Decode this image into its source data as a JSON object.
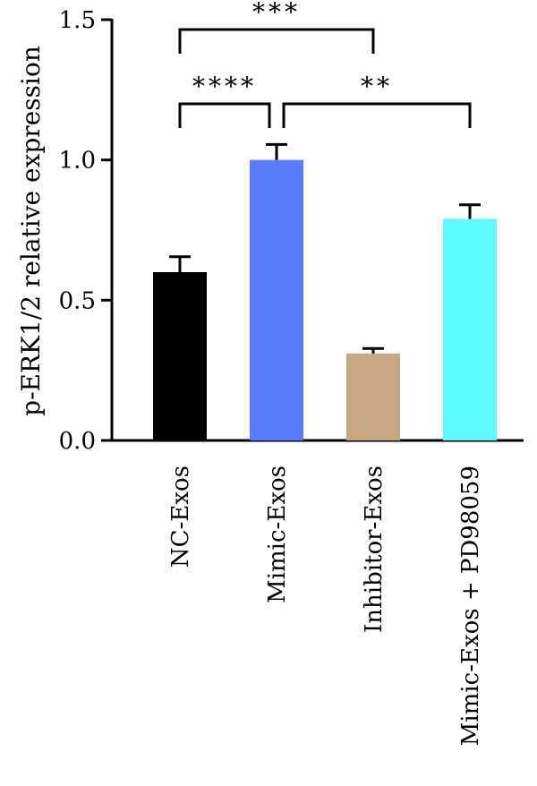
{
  "chart_data": {
    "type": "bar",
    "title": "",
    "xlabel": "",
    "ylabel": "p-ERK1/2 relative expression",
    "ylim": [
      0,
      1.5
    ],
    "yticks": [
      "0.0",
      "0.5",
      "1.0",
      "1.5"
    ],
    "ytick_values": [
      0,
      0.5,
      1.0,
      1.5
    ],
    "categories": [
      "NC-Exos",
      "Mimic-Exos",
      "Inhibitor-Exos",
      "Mimic-Exos + PD98059"
    ],
    "values": [
      0.6,
      1.0,
      0.31,
      0.79
    ],
    "errors": [
      0.055,
      0.055,
      0.018,
      0.05
    ],
    "colors": [
      "#000000",
      "#5b7cfa",
      "#c8a784",
      "#5ff9fc"
    ],
    "grid": false,
    "legend": "none",
    "significance": [
      {
        "groups": [
          0,
          2
        ],
        "label": "***"
      },
      {
        "groups": [
          0,
          1
        ],
        "label": "****"
      },
      {
        "groups": [
          1,
          3
        ],
        "label": "**"
      }
    ]
  }
}
